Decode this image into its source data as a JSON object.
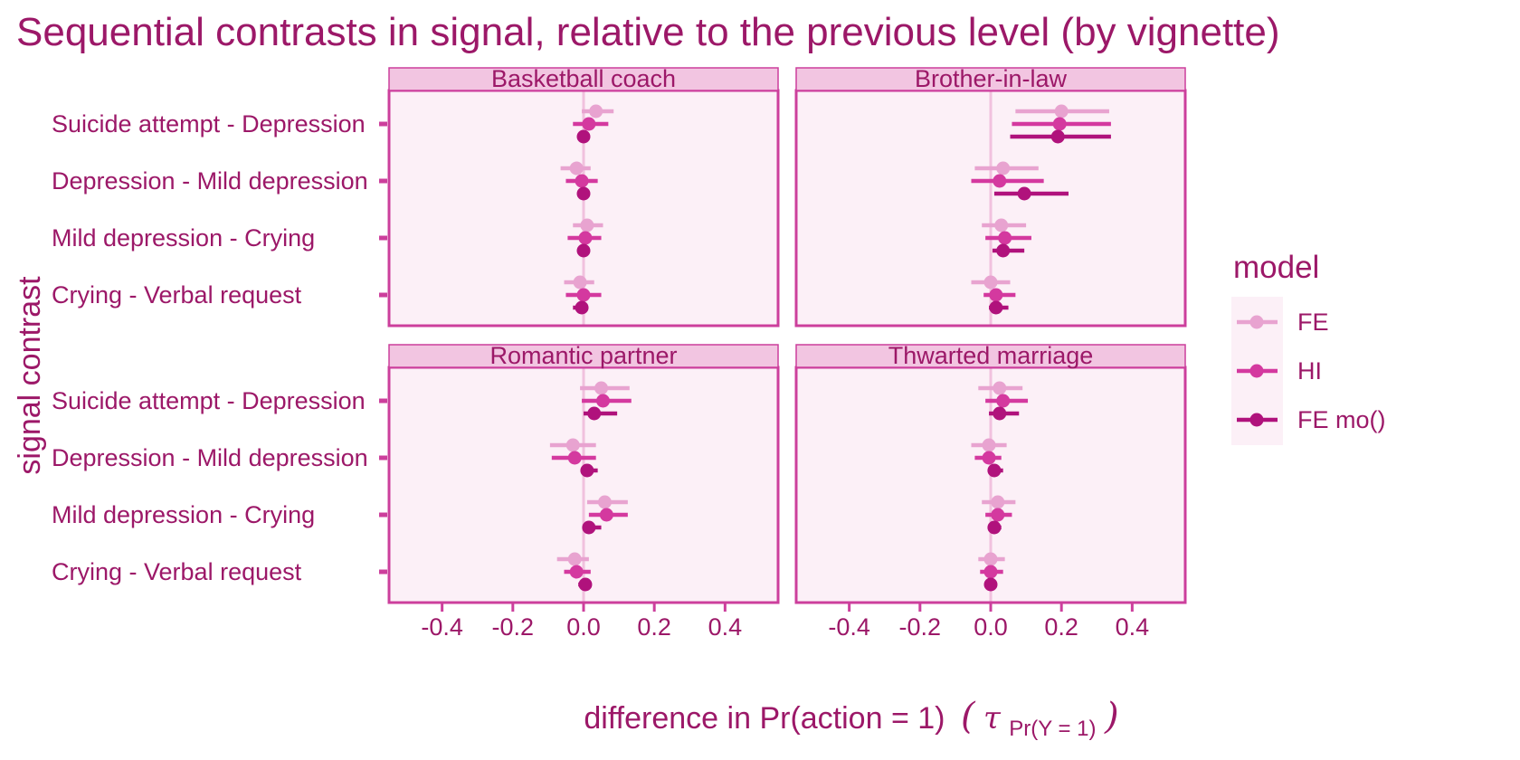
{
  "chart_data": {
    "type": "dot-range",
    "title": "Sequential contrasts in signal, relative to the previous level (by vignette)",
    "xlabel": "difference in Pr(action = 1)",
    "xlabel_math": {
      "open": "(",
      "tau": "τ",
      "sub": "Pr(Y = 1)",
      "close": ")"
    },
    "ylabel": "signal contrast",
    "xlim": [
      -0.55,
      0.55
    ],
    "x_ticks": [
      -0.4,
      -0.2,
      0.0,
      0.2,
      0.4
    ],
    "x_tick_labels": [
      "-0.4",
      "-0.2",
      "0.0",
      "0.2",
      "0.4"
    ],
    "reference_line": 0,
    "contrasts": [
      "Suicide attempt - Depression",
      "Depression - Mild depression",
      "Mild depression - Crying",
      "Crying - Verbal request"
    ],
    "legend": {
      "title": "model",
      "position": "right",
      "entries": [
        "FE",
        "HI",
        "FE mo()"
      ]
    },
    "colors": {
      "FE": "#e8a3d0",
      "HI": "#d4399f",
      "FE mo()": "#b0127c",
      "text": "#9c1868",
      "panel_fill": "#fcf0f7",
      "panel_border": "#cc3f9c",
      "strip_fill": "#f2c5e1",
      "zero_line": "#f1c1de"
    },
    "panels": [
      {
        "title": "Basketball coach",
        "series": [
          {
            "name": "FE",
            "points": [
              {
                "contrast": "Suicide attempt - Depression",
                "estimate": 0.035,
                "lower": -0.005,
                "upper": 0.085
              },
              {
                "contrast": "Depression - Mild depression",
                "estimate": -0.02,
                "lower": -0.065,
                "upper": 0.02
              },
              {
                "contrast": "Mild depression - Crying",
                "estimate": 0.01,
                "lower": -0.03,
                "upper": 0.055
              },
              {
                "contrast": "Crying - Verbal request",
                "estimate": -0.01,
                "lower": -0.055,
                "upper": 0.03
              }
            ]
          },
          {
            "name": "HI",
            "points": [
              {
                "contrast": "Suicide attempt - Depression",
                "estimate": 0.015,
                "lower": -0.03,
                "upper": 0.07
              },
              {
                "contrast": "Depression - Mild depression",
                "estimate": -0.005,
                "lower": -0.05,
                "upper": 0.04
              },
              {
                "contrast": "Mild depression - Crying",
                "estimate": 0.005,
                "lower": -0.045,
                "upper": 0.05
              },
              {
                "contrast": "Crying - Verbal request",
                "estimate": 0.0,
                "lower": -0.05,
                "upper": 0.05
              }
            ]
          },
          {
            "name": "FE mo()",
            "points": [
              {
                "contrast": "Suicide attempt - Depression",
                "estimate": 0.0,
                "lower": -0.01,
                "upper": 0.01
              },
              {
                "contrast": "Depression - Mild depression",
                "estimate": 0.0,
                "lower": -0.01,
                "upper": 0.01
              },
              {
                "contrast": "Mild depression - Crying",
                "estimate": 0.0,
                "lower": -0.01,
                "upper": 0.01
              },
              {
                "contrast": "Crying - Verbal request",
                "estimate": -0.005,
                "lower": -0.03,
                "upper": 0.01
              }
            ]
          }
        ]
      },
      {
        "title": "Brother-in-law",
        "series": [
          {
            "name": "FE",
            "points": [
              {
                "contrast": "Suicide attempt - Depression",
                "estimate": 0.2,
                "lower": 0.07,
                "upper": 0.335
              },
              {
                "contrast": "Depression - Mild depression",
                "estimate": 0.035,
                "lower": -0.045,
                "upper": 0.135
              },
              {
                "contrast": "Mild depression - Crying",
                "estimate": 0.03,
                "lower": -0.025,
                "upper": 0.1
              },
              {
                "contrast": "Crying - Verbal request",
                "estimate": 0.0,
                "lower": -0.055,
                "upper": 0.055
              }
            ]
          },
          {
            "name": "HI",
            "points": [
              {
                "contrast": "Suicide attempt - Depression",
                "estimate": 0.195,
                "lower": 0.06,
                "upper": 0.34
              },
              {
                "contrast": "Depression - Mild depression",
                "estimate": 0.025,
                "lower": -0.055,
                "upper": 0.15
              },
              {
                "contrast": "Mild depression - Crying",
                "estimate": 0.04,
                "lower": -0.015,
                "upper": 0.115
              },
              {
                "contrast": "Crying - Verbal request",
                "estimate": 0.015,
                "lower": -0.02,
                "upper": 0.07
              }
            ]
          },
          {
            "name": "FE mo()",
            "points": [
              {
                "contrast": "Suicide attempt - Depression",
                "estimate": 0.19,
                "lower": 0.055,
                "upper": 0.34
              },
              {
                "contrast": "Depression - Mild depression",
                "estimate": 0.095,
                "lower": 0.01,
                "upper": 0.22
              },
              {
                "contrast": "Mild depression - Crying",
                "estimate": 0.035,
                "lower": 0.005,
                "upper": 0.095
              },
              {
                "contrast": "Crying - Verbal request",
                "estimate": 0.015,
                "lower": -0.005,
                "upper": 0.05
              }
            ]
          }
        ]
      },
      {
        "title": "Romantic partner",
        "series": [
          {
            "name": "FE",
            "points": [
              {
                "contrast": "Suicide attempt - Depression",
                "estimate": 0.05,
                "lower": -0.01,
                "upper": 0.13
              },
              {
                "contrast": "Depression - Mild depression",
                "estimate": -0.03,
                "lower": -0.095,
                "upper": 0.035
              },
              {
                "contrast": "Mild depression - Crying",
                "estimate": 0.06,
                "lower": 0.01,
                "upper": 0.125
              },
              {
                "contrast": "Crying - Verbal request",
                "estimate": -0.025,
                "lower": -0.075,
                "upper": 0.015
              }
            ]
          },
          {
            "name": "HI",
            "points": [
              {
                "contrast": "Suicide attempt - Depression",
                "estimate": 0.055,
                "lower": -0.005,
                "upper": 0.135
              },
              {
                "contrast": "Depression - Mild depression",
                "estimate": -0.025,
                "lower": -0.09,
                "upper": 0.035
              },
              {
                "contrast": "Mild depression - Crying",
                "estimate": 0.065,
                "lower": 0.015,
                "upper": 0.125
              },
              {
                "contrast": "Crying - Verbal request",
                "estimate": -0.02,
                "lower": -0.055,
                "upper": 0.02
              }
            ]
          },
          {
            "name": "FE mo()",
            "points": [
              {
                "contrast": "Suicide attempt - Depression",
                "estimate": 0.03,
                "lower": 0.0,
                "upper": 0.095
              },
              {
                "contrast": "Depression - Mild depression",
                "estimate": 0.01,
                "lower": 0.0,
                "upper": 0.04
              },
              {
                "contrast": "Mild depression - Crying",
                "estimate": 0.015,
                "lower": 0.0,
                "upper": 0.05
              },
              {
                "contrast": "Crying - Verbal request",
                "estimate": 0.005,
                "lower": -0.015,
                "upper": 0.02
              }
            ]
          }
        ]
      },
      {
        "title": "Thwarted marriage",
        "series": [
          {
            "name": "FE",
            "points": [
              {
                "contrast": "Suicide attempt - Depression",
                "estimate": 0.025,
                "lower": -0.035,
                "upper": 0.09
              },
              {
                "contrast": "Depression - Mild depression",
                "estimate": -0.005,
                "lower": -0.055,
                "upper": 0.045
              },
              {
                "contrast": "Mild depression - Crying",
                "estimate": 0.02,
                "lower": -0.025,
                "upper": 0.07
              },
              {
                "contrast": "Crying - Verbal request",
                "estimate": 0.0,
                "lower": -0.035,
                "upper": 0.04
              }
            ]
          },
          {
            "name": "HI",
            "points": [
              {
                "contrast": "Suicide attempt - Depression",
                "estimate": 0.035,
                "lower": -0.015,
                "upper": 0.105
              },
              {
                "contrast": "Depression - Mild depression",
                "estimate": -0.005,
                "lower": -0.045,
                "upper": 0.03
              },
              {
                "contrast": "Mild depression - Crying",
                "estimate": 0.02,
                "lower": -0.015,
                "upper": 0.06
              },
              {
                "contrast": "Crying - Verbal request",
                "estimate": 0.0,
                "lower": -0.03,
                "upper": 0.035
              }
            ]
          },
          {
            "name": "FE mo()",
            "points": [
              {
                "contrast": "Suicide attempt - Depression",
                "estimate": 0.025,
                "lower": -0.005,
                "upper": 0.08
              },
              {
                "contrast": "Depression - Mild depression",
                "estimate": 0.01,
                "lower": -0.005,
                "upper": 0.035
              },
              {
                "contrast": "Mild depression - Crying",
                "estimate": 0.01,
                "lower": -0.005,
                "upper": 0.03
              },
              {
                "contrast": "Crying - Verbal request",
                "estimate": 0.0,
                "lower": -0.005,
                "upper": 0.01
              }
            ]
          }
        ]
      }
    ]
  }
}
